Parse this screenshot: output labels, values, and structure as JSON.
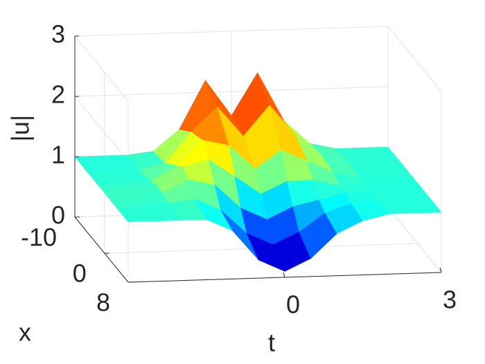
{
  "chart_data": {
    "type": "surface",
    "zlabel": "|u|",
    "xlabel": "x",
    "tlabel": "t",
    "colormap": "jet",
    "grid": true,
    "t": [
      -3,
      -2,
      -1.5,
      -1,
      -0.5,
      0,
      0.5,
      1,
      1.5,
      2,
      3
    ],
    "x": [
      -10,
      -6,
      -2,
      0,
      2,
      4,
      8
    ],
    "z": [
      [
        1,
        1,
        1.05,
        1.4,
        2.2,
        1.6,
        2.3,
        1.5,
        1.1,
        1,
        1
      ],
      [
        1,
        1,
        1.1,
        1.6,
        2.0,
        1.5,
        2.0,
        1.5,
        1.15,
        1.05,
        1
      ],
      [
        1,
        1.05,
        1.3,
        1.7,
        1.6,
        1.2,
        1.5,
        1.3,
        1.1,
        1,
        1
      ],
      [
        1,
        1.1,
        1.4,
        1.5,
        1.2,
        0.9,
        1.1,
        1.1,
        1,
        1,
        1
      ],
      [
        1,
        1.1,
        1.3,
        1.2,
        0.8,
        0.6,
        0.8,
        0.9,
        1,
        1,
        1
      ],
      [
        1,
        1.05,
        1.1,
        0.9,
        0.5,
        0.3,
        0.5,
        0.8,
        0.95,
        1,
        1
      ],
      [
        1,
        1,
        1,
        0.8,
        0.3,
        0.1,
        0.3,
        0.7,
        0.9,
        1,
        1
      ]
    ],
    "tlim": [
      -3,
      3
    ],
    "tticks": [
      0,
      3
    ],
    "xlim": [
      -10,
      8
    ],
    "xticks": [
      -10,
      0,
      8
    ],
    "zlim": [
      0,
      3
    ],
    "zticks": [
      0,
      1,
      2,
      3
    ]
  }
}
